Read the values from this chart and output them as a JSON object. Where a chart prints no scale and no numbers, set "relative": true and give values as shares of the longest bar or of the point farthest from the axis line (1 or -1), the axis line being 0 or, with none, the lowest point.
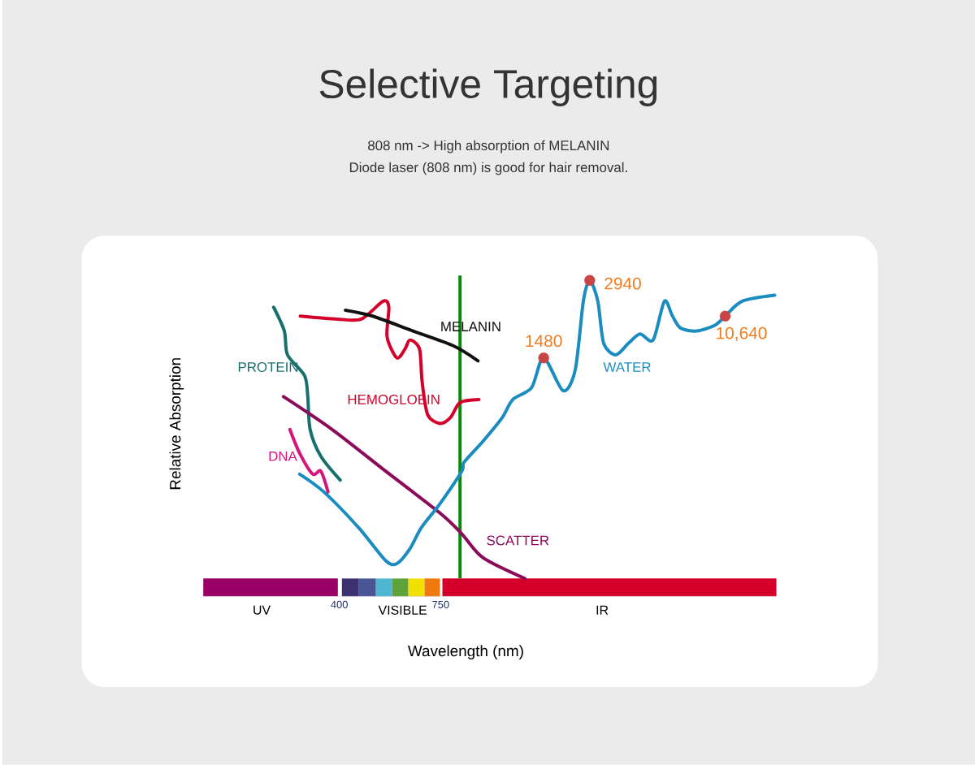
{
  "chart_data": {
    "type": "line",
    "title": "Selective Targeting",
    "subtitle": "808 nm -> High absorption of MELANIN",
    "annotations": [
      "Diode laser (808 nm) is good for hair removal.",
      "UV",
      "VISIBLE",
      "IR",
      {
        "text": "1480",
        "x": 1106,
        "y": 0.74
      },
      {
        "text": "2940",
        "x": 1265,
        "y": 1.0
      },
      {
        "text": "10,640",
        "x": 1733,
        "y": 0.88
      }
    ],
    "xlabel": "Wavelength (nm)",
    "ylabel": "Relative Absorption",
    "relative": true,
    "tick_labels": "x",
    "xlim": [
      -70,
      1910
    ],
    "xticks": [
      400,
      750
    ],
    "series": [
      {
        "name": "PROTEIN",
        "color": "#17706e",
        "x": [
          173,
          210,
          221,
          280,
          291,
          299,
          336,
          403
        ],
        "values": [
          0.91,
          0.83,
          0.75,
          0.68,
          0.61,
          0.5,
          0.41,
          0.33
        ]
      },
      {
        "name": "DNA",
        "color": "#d6157a",
        "x": [
          229,
          263,
          308,
          336,
          361
        ],
        "values": [
          0.5,
          0.42,
          0.35,
          0.36,
          0.29
        ]
      },
      {
        "name": "HEMOGLOBIN",
        "color": "#d4002a",
        "x": [
          265,
          392,
          476,
          551,
          571,
          565,
          599,
          627,
          644,
          677,
          686,
          705,
          747,
          784,
          817,
          882
        ],
        "values": [
          0.88,
          0.87,
          0.87,
          0.93,
          0.91,
          0.81,
          0.74,
          0.77,
          0.8,
          0.77,
          0.66,
          0.55,
          0.52,
          0.54,
          0.59,
          0.6
        ]
      },
      {
        "name": "MELANIN",
        "color": "#111111",
        "x": [
          421,
          515,
          655,
          795,
          879
        ],
        "values": [
          0.9,
          0.88,
          0.83,
          0.78,
          0.73
        ]
      },
      {
        "name": "SCATTER",
        "color": "#8b0a5a",
        "x": [
          207,
          375,
          560,
          747,
          823,
          896,
          1041
        ],
        "values": [
          0.61,
          0.5,
          0.36,
          0.22,
          0.15,
          0.07,
          0
        ]
      },
      {
        "name": "WATER",
        "color": "#1a8cc0",
        "x": [
          263,
          347,
          467,
          560,
          599,
          644,
          683,
          747,
          823,
          831,
          896,
          963,
          999,
          1064,
          1106,
          1173,
          1215,
          1243,
          1265,
          1293,
          1313,
          1355,
          1400,
          1439,
          1484,
          1523,
          1551,
          1579,
          1635,
          1699,
          1733,
          1792,
          1904
        ],
        "values": [
          0.35,
          0.29,
          0.17,
          0.06,
          0.05,
          0.1,
          0.17,
          0.25,
          0.36,
          0.39,
          0.46,
          0.54,
          0.6,
          0.64,
          0.74,
          0.63,
          0.7,
          0.93,
          1.0,
          0.93,
          0.79,
          0.75,
          0.79,
          0.82,
          0.8,
          0.93,
          0.88,
          0.84,
          0.83,
          0.85,
          0.88,
          0.93,
          0.95
        ]
      },
      {
        "type": "scatter",
        "color": "#c84545",
        "x": [
          1106,
          1265,
          1733
        ],
        "values": [
          0.74,
          1.0,
          0.88
        ]
      }
    ],
    "ref_lines": [
      {
        "axis": "x",
        "value": 817,
        "color": "#0a8a0a"
      }
    ]
  }
}
